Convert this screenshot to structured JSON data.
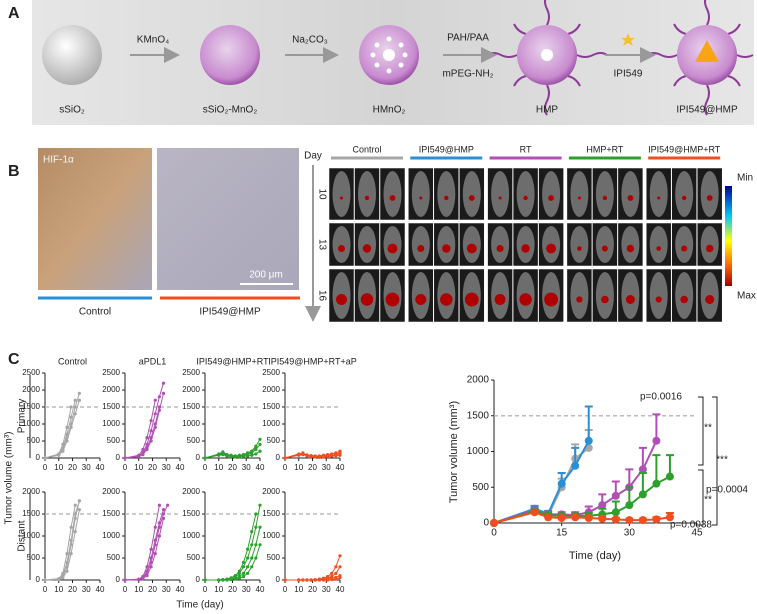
{
  "panel_a": {
    "label": "A",
    "materials": [
      "sSiO₂",
      "sSiO₂-MnO₂",
      "HMnO₂",
      "HMP",
      "IPI549@HMP"
    ],
    "reagents": [
      "KMnO₄",
      "Na₂CO₃",
      "PAH/PAA",
      "mPEG-NH₂",
      "IPI549"
    ]
  },
  "panel_b": {
    "label": "B",
    "stain": "HIF-1α",
    "scale": "200 μm",
    "histology_groups": [
      {
        "name": "Control",
        "color": "#2b8fd6"
      },
      {
        "name": "IPI549@HMP",
        "color": "#f04e1f"
      }
    ],
    "day_label": "Day",
    "days": [
      10,
      13,
      16
    ],
    "imaging_groups": [
      {
        "name": "Control",
        "color": "#a6a6a6"
      },
      {
        "name": "IPI549@HMP",
        "color": "#2b8fd6"
      },
      {
        "name": "RT",
        "color": "#b04fb5"
      },
      {
        "name": "HMP+RT",
        "color": "#2ca02c"
      },
      {
        "name": "IPI549@HMP+RT",
        "color": "#f04e1f"
      }
    ],
    "scale_min": "Min",
    "scale_max": "Max"
  },
  "panel_c": {
    "label": "C",
    "rows": [
      "Primary",
      "Distant"
    ],
    "y_label": "Tumor volume (mm³)",
    "x_label": "Time (day)",
    "main_y_label": "Tumor volume (mm³)",
    "main_x_label": "Time (day)"
  },
  "chart_data": [
    {
      "type": "line",
      "title": "Control",
      "x": [
        0,
        10,
        13,
        16,
        19,
        22,
        25,
        28,
        31,
        34,
        37,
        40
      ],
      "xlim": [
        0,
        40
      ],
      "xticks": [
        0,
        10,
        20,
        30,
        40
      ],
      "ylim": [
        0,
        2500
      ],
      "yticks": [
        0,
        500,
        1000,
        1500,
        2000,
        2500
      ],
      "hline": 1500,
      "series": [
        {
          "color": "#a6a6a6",
          "values": [
            0,
            100,
            300,
            700,
            1200,
            1700,
            null,
            null,
            null,
            null,
            null,
            null
          ]
        },
        {
          "color": "#a6a6a6",
          "values": [
            0,
            80,
            250,
            600,
            1000,
            1500,
            1900,
            null,
            null,
            null,
            null,
            null
          ]
        },
        {
          "color": "#a6a6a6",
          "values": [
            0,
            120,
            400,
            900,
            1500,
            null,
            null,
            null,
            null,
            null,
            null,
            null
          ]
        },
        {
          "color": "#a6a6a6",
          "values": [
            0,
            90,
            200,
            500,
            900,
            1300,
            1700,
            null,
            null,
            null,
            null,
            null
          ]
        }
      ]
    },
    {
      "type": "line",
      "title": "aPDL1",
      "x": [
        0,
        10,
        13,
        16,
        19,
        22,
        25,
        28,
        31,
        34,
        37,
        40
      ],
      "xlim": [
        0,
        40
      ],
      "xticks": [
        0,
        10,
        20,
        30,
        40
      ],
      "ylim": [
        0,
        2500
      ],
      "yticks": [
        0,
        500,
        1000,
        1500,
        2000,
        2500
      ],
      "hline": 1500,
      "series": [
        {
          "color": "#b04fb5",
          "values": [
            0,
            60,
            150,
            400,
            800,
            1300,
            1800,
            2200,
            null,
            null,
            null,
            null
          ]
        },
        {
          "color": "#b04fb5",
          "values": [
            0,
            50,
            120,
            300,
            600,
            1000,
            1500,
            null,
            null,
            null,
            null,
            null
          ]
        },
        {
          "color": "#b04fb5",
          "values": [
            0,
            80,
            250,
            600,
            1100,
            1700,
            null,
            null,
            null,
            null,
            null,
            null
          ]
        },
        {
          "color": "#b04fb5",
          "values": [
            0,
            40,
            100,
            250,
            500,
            900,
            1400,
            1900,
            null,
            null,
            null,
            null
          ]
        }
      ]
    },
    {
      "type": "line",
      "title": "IPI549@HMP+RT",
      "x": [
        0,
        10,
        13,
        16,
        19,
        22,
        25,
        28,
        31,
        34,
        37,
        40
      ],
      "xlim": [
        0,
        40
      ],
      "xticks": [
        0,
        10,
        20,
        30,
        40
      ],
      "ylim": [
        0,
        2500
      ],
      "yticks": [
        0,
        500,
        1000,
        1500,
        2000,
        2500
      ],
      "hline": 1500,
      "series": [
        {
          "color": "#2ca02c",
          "values": [
            0,
            100,
            150,
            80,
            60,
            50,
            60,
            80,
            100,
            150,
            250,
            400
          ]
        },
        {
          "color": "#2ca02c",
          "values": [
            0,
            120,
            180,
            100,
            80,
            60,
            50,
            70,
            120,
            200,
            350,
            550
          ]
        },
        {
          "color": "#2ca02c",
          "values": [
            0,
            80,
            100,
            60,
            40,
            30,
            40,
            50,
            60,
            80,
            120,
            200
          ]
        },
        {
          "color": "#2ca02c",
          "values": [
            0,
            90,
            130,
            70,
            50,
            60,
            80,
            100,
            150,
            200,
            300,
            null
          ]
        }
      ]
    },
    {
      "type": "line",
      "title": "IPI549@HMP+RT+aP",
      "x": [
        0,
        10,
        13,
        16,
        19,
        22,
        25,
        28,
        31,
        34,
        37,
        40
      ],
      "xlim": [
        0,
        40
      ],
      "xticks": [
        0,
        10,
        20,
        30,
        40
      ],
      "ylim": [
        0,
        2500
      ],
      "yticks": [
        0,
        500,
        1000,
        1500,
        2000,
        2500
      ],
      "hline": 1500,
      "series": [
        {
          "color": "#f04e1f",
          "values": [
            0,
            100,
            150,
            80,
            60,
            50,
            40,
            50,
            60,
            80,
            100,
            150
          ]
        },
        {
          "color": "#f04e1f",
          "values": [
            0,
            120,
            130,
            90,
            70,
            60,
            50,
            40,
            50,
            60,
            80,
            100
          ]
        },
        {
          "color": "#f04e1f",
          "values": [
            0,
            80,
            100,
            70,
            50,
            40,
            60,
            80,
            100,
            120,
            150,
            200
          ]
        },
        {
          "color": "#f04e1f",
          "values": [
            0,
            90,
            120,
            60,
            40,
            30,
            20,
            30,
            40,
            60,
            70,
            80
          ]
        }
      ]
    },
    {
      "type": "line",
      "x": [
        0,
        10,
        13,
        16,
        19,
        22,
        25,
        28,
        31,
        34,
        37,
        40
      ],
      "xlim": [
        0,
        40
      ],
      "xticks": [
        0,
        10,
        20,
        30,
        40
      ],
      "ylim": [
        0,
        2000
      ],
      "yticks": [
        0,
        500,
        1000,
        1500,
        2000
      ],
      "hline": 1500,
      "series": [
        {
          "color": "#a6a6a6",
          "values": [
            0,
            20,
            100,
            400,
            900,
            1500,
            1800,
            null,
            null,
            null,
            null,
            null
          ]
        },
        {
          "color": "#a6a6a6",
          "values": [
            0,
            30,
            150,
            600,
            1200,
            1700,
            null,
            null,
            null,
            null,
            null,
            null
          ]
        },
        {
          "color": "#a6a6a6",
          "values": [
            0,
            10,
            50,
            200,
            600,
            1100,
            1600,
            null,
            null,
            null,
            null,
            null
          ]
        },
        {
          "color": "#a6a6a6",
          "values": [
            0,
            20,
            80,
            300,
            800,
            1400,
            1800,
            null,
            null,
            null,
            null,
            null
          ]
        }
      ]
    },
    {
      "type": "line",
      "x": [
        0,
        10,
        13,
        16,
        19,
        22,
        25,
        28,
        31,
        34,
        37,
        40
      ],
      "xlim": [
        0,
        40
      ],
      "xticks": [
        0,
        10,
        20,
        30,
        40
      ],
      "ylim": [
        0,
        2000
      ],
      "yticks": [
        0,
        500,
        1000,
        1500,
        2000
      ],
      "hline": 1500,
      "series": [
        {
          "color": "#b04fb5",
          "values": [
            0,
            10,
            50,
            200,
            500,
            900,
            1300,
            1600,
            null,
            null,
            null,
            null
          ]
        },
        {
          "color": "#b04fb5",
          "values": [
            0,
            20,
            80,
            300,
            700,
            1200,
            1700,
            null,
            null,
            null,
            null,
            null
          ]
        },
        {
          "color": "#b04fb5",
          "values": [
            0,
            10,
            40,
            150,
            400,
            800,
            1200,
            1500,
            1700,
            null,
            null,
            null
          ]
        },
        {
          "color": "#b04fb5",
          "values": [
            0,
            5,
            30,
            100,
            300,
            600,
            1000,
            1400,
            null,
            null,
            null,
            null
          ]
        }
      ]
    },
    {
      "type": "line",
      "x": [
        0,
        10,
        13,
        16,
        19,
        22,
        25,
        28,
        31,
        34,
        37,
        40
      ],
      "xlim": [
        0,
        40
      ],
      "xticks": [
        0,
        10,
        20,
        30,
        40
      ],
      "ylim": [
        0,
        2000
      ],
      "yticks": [
        0,
        500,
        1000,
        1500,
        2000
      ],
      "hline": 1500,
      "series": [
        {
          "color": "#2ca02c",
          "values": [
            0,
            0,
            10,
            20,
            50,
            100,
            200,
            400,
            700,
            1100,
            1500,
            null
          ]
        },
        {
          "color": "#2ca02c",
          "values": [
            0,
            0,
            5,
            10,
            30,
            60,
            150,
            300,
            500,
            800,
            1200,
            1700
          ]
        },
        {
          "color": "#2ca02c",
          "values": [
            0,
            0,
            0,
            10,
            20,
            40,
            80,
            150,
            300,
            500,
            800,
            1200
          ]
        },
        {
          "color": "#2ca02c",
          "values": [
            0,
            0,
            0,
            0,
            10,
            20,
            40,
            80,
            150,
            300,
            500,
            800
          ]
        }
      ]
    },
    {
      "type": "line",
      "x": [
        0,
        10,
        13,
        16,
        19,
        22,
        25,
        28,
        31,
        34,
        37,
        40
      ],
      "xlim": [
        0,
        40
      ],
      "xticks": [
        0,
        10,
        20,
        30,
        40
      ],
      "ylim": [
        0,
        2000
      ],
      "yticks": [
        0,
        500,
        1000,
        1500,
        2000
      ],
      "hline": 1500,
      "series": [
        {
          "color": "#f04e1f",
          "values": [
            0,
            0,
            0,
            0,
            0,
            10,
            20,
            40,
            80,
            150,
            300,
            550
          ]
        },
        {
          "color": "#f04e1f",
          "values": [
            0,
            0,
            0,
            0,
            0,
            0,
            10,
            20,
            40,
            80,
            150,
            300
          ]
        },
        {
          "color": "#f04e1f",
          "values": [
            0,
            0,
            0,
            0,
            0,
            0,
            0,
            10,
            20,
            40,
            60,
            100
          ]
        },
        {
          "color": "#f04e1f",
          "values": [
            0,
            0,
            0,
            0,
            0,
            0,
            0,
            0,
            0,
            10,
            20,
            50
          ]
        }
      ]
    },
    {
      "type": "errorline",
      "x": [
        0,
        9,
        12,
        15,
        18,
        21,
        24,
        27,
        30,
        33,
        36,
        39,
        42
      ],
      "xlim": [
        0,
        45
      ],
      "xticks": [
        0,
        15,
        30,
        45
      ],
      "ylim": [
        0,
        2000
      ],
      "yticks": [
        0,
        500,
        1000,
        1500,
        2000
      ],
      "hline": 1500,
      "annotations": [
        "p=0.0016",
        "**",
        "***",
        "p=0.0004",
        "**",
        "p=0.0038"
      ],
      "series": [
        {
          "color": "#a6a6a6",
          "values": [
            0,
            170,
            100,
            500,
            900,
            1050,
            null,
            null,
            null,
            null,
            null,
            null,
            null
          ],
          "errors": [
            0,
            30,
            30,
            120,
            200,
            250,
            null,
            null,
            null,
            null,
            null,
            null,
            null
          ]
        },
        {
          "color": "#2b8fd6",
          "values": [
            0,
            200,
            130,
            550,
            800,
            1150,
            null,
            null,
            null,
            null,
            null,
            null,
            null
          ],
          "errors": [
            0,
            40,
            40,
            150,
            250,
            480,
            null,
            null,
            null,
            null,
            null,
            null,
            null
          ]
        },
        {
          "color": "#b04fb5",
          "values": [
            0,
            180,
            120,
            120,
            110,
            150,
            250,
            380,
            500,
            750,
            1150,
            null,
            null
          ],
          "errors": [
            0,
            30,
            30,
            30,
            40,
            80,
            150,
            200,
            250,
            300,
            370,
            null,
            null
          ]
        },
        {
          "color": "#2ca02c",
          "values": [
            0,
            160,
            110,
            100,
            100,
            100,
            120,
            150,
            250,
            400,
            550,
            650,
            null
          ],
          "errors": [
            0,
            30,
            20,
            20,
            30,
            40,
            80,
            150,
            250,
            300,
            400,
            300,
            null
          ]
        },
        {
          "color": "#f04e1f",
          "values": [
            0,
            150,
            80,
            70,
            80,
            70,
            60,
            50,
            40,
            40,
            50,
            80,
            null
          ],
          "errors": [
            0,
            20,
            20,
            20,
            20,
            20,
            20,
            20,
            20,
            20,
            30,
            60,
            null
          ]
        }
      ]
    }
  ]
}
